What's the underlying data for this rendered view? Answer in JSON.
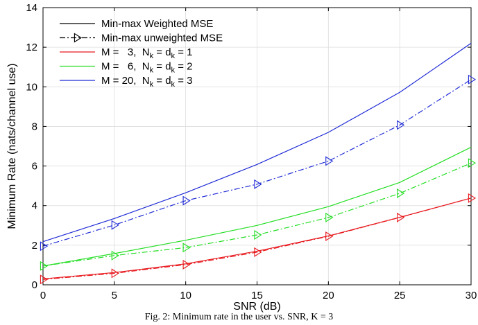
{
  "caption": "Fig. 2: Minimum rate in the user vs. SNR, K = 3",
  "chart_data": {
    "type": "line",
    "title": "",
    "xlabel": "SNR (dB)",
    "ylabel": "Minimum Rate (nats/channel use)",
    "xlim": [
      0,
      30
    ],
    "ylim": [
      0,
      14
    ],
    "xticks": [
      0,
      5,
      10,
      15,
      20,
      25,
      30
    ],
    "yticks": [
      0,
      2,
      4,
      6,
      8,
      10,
      12,
      14
    ],
    "grid": true,
    "legend_position": "top-left",
    "x": [
      0,
      5,
      10,
      15,
      20,
      25,
      30
    ],
    "series": [
      {
        "name": "M = 3, Nk = dk = 1 (weighted)",
        "config": "red",
        "method": "weighted",
        "color": "#e8191e",
        "values": [
          0.3,
          0.62,
          1.06,
          1.7,
          2.47,
          3.41,
          4.38
        ]
      },
      {
        "name": "M = 3, Nk = dk = 1 (unweighted)",
        "config": "red",
        "method": "unweighted",
        "color": "#e8191e",
        "values": [
          0.27,
          0.58,
          1.02,
          1.65,
          2.45,
          3.4,
          4.38
        ]
      },
      {
        "name": "M = 6, Nk = dk = 2 (weighted)",
        "config": "green",
        "method": "weighted",
        "color": "#22dd22",
        "values": [
          0.95,
          1.58,
          2.25,
          3.0,
          3.95,
          5.17,
          6.95
        ]
      },
      {
        "name": "M = 6, Nk = dk = 2 (unweighted)",
        "config": "green",
        "method": "unweighted",
        "color": "#22dd22",
        "values": [
          0.95,
          1.48,
          1.88,
          2.52,
          3.4,
          4.62,
          6.15
        ]
      },
      {
        "name": "M = 20, Nk = dk = 3 (weighted)",
        "config": "blue",
        "method": "weighted",
        "color": "#1f2bd6",
        "values": [
          2.18,
          3.35,
          4.65,
          6.08,
          7.7,
          9.72,
          12.2
        ]
      },
      {
        "name": "M = 20, Nk = dk = 3 (unweighted)",
        "config": "blue",
        "method": "unweighted",
        "color": "#1f2bd6",
        "values": [
          1.95,
          3.02,
          4.25,
          5.08,
          6.25,
          8.07,
          10.37
        ]
      }
    ],
    "legend": {
      "entries": [
        {
          "label": "Min-max Weighted MSE",
          "style": "solid",
          "color": "#000000"
        },
        {
          "label": "Min-max unweighted MSE",
          "style": "dashdot-triangle",
          "color": "#000000"
        },
        {
          "label_main": "M =   3,  N",
          "sub1": "k",
          "mid": " = d",
          "sub2": "k",
          "tail": " = 1",
          "style": "solid",
          "color": "#e8191e"
        },
        {
          "label_main": "M =   6,  N",
          "sub1": "k",
          "mid": " = d",
          "sub2": "k",
          "tail": " = 2",
          "style": "solid",
          "color": "#22dd22"
        },
        {
          "label_main": "M = 20,  N",
          "sub1": "k",
          "mid": " = d",
          "sub2": "k",
          "tail": " = 3",
          "style": "solid",
          "color": "#1f2bd6"
        }
      ]
    }
  }
}
